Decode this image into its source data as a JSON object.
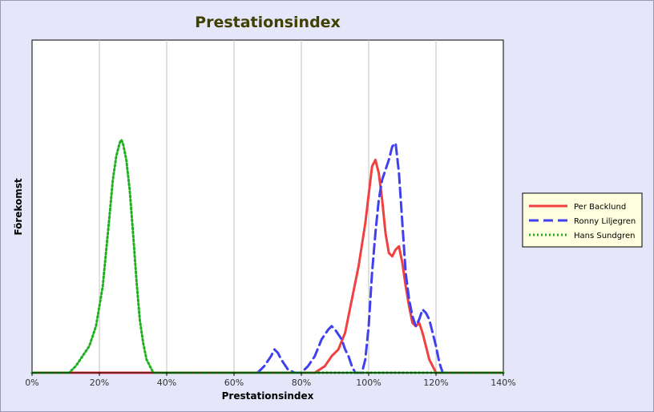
{
  "colors": {
    "background": "#e6e6fa",
    "plot_background": "#ffffff",
    "gridline": "#c0c0c0",
    "title": "#404000",
    "legend_background": "#ffffe0",
    "axis_text": "#333333"
  },
  "chart_data": {
    "type": "line",
    "title": "Prestationsindex",
    "xlabel": "Prestationsindex",
    "ylabel": "Förekomst",
    "xlim": [
      0,
      140
    ],
    "ylim": [
      0,
      100
    ],
    "x_ticks": [
      0,
      20,
      40,
      60,
      80,
      100,
      120,
      140
    ],
    "x_tick_labels": [
      "0%",
      "20%",
      "40%",
      "60%",
      "80%",
      "100%",
      "120%",
      "140%"
    ],
    "vertical_grid": true,
    "horizontal_grid": false,
    "legend_position": "right",
    "series": [
      {
        "name": "Per Backlund",
        "color": "#f04040",
        "dash": "solid",
        "points": [
          [
            0,
            0
          ],
          [
            84,
            0
          ],
          [
            87,
            2
          ],
          [
            89,
            5
          ],
          [
            91,
            7
          ],
          [
            93,
            12
          ],
          [
            95,
            22
          ],
          [
            97,
            32
          ],
          [
            99,
            45
          ],
          [
            101,
            62
          ],
          [
            102,
            64
          ],
          [
            103,
            60
          ],
          [
            104,
            52
          ],
          [
            105,
            42
          ],
          [
            106,
            36
          ],
          [
            107,
            35
          ],
          [
            108,
            37
          ],
          [
            109,
            38
          ],
          [
            110,
            33
          ],
          [
            111,
            26
          ],
          [
            112,
            20
          ],
          [
            113,
            15
          ],
          [
            114,
            14
          ],
          [
            115,
            15
          ],
          [
            116,
            12
          ],
          [
            117,
            8
          ],
          [
            118,
            4
          ],
          [
            119,
            2
          ],
          [
            120,
            0
          ],
          [
            140,
            0
          ]
        ]
      },
      {
        "name": "Ronny Liljegren",
        "color": "#4040ee",
        "dash": "dashed",
        "points": [
          [
            67,
            0
          ],
          [
            69,
            2
          ],
          [
            71,
            5
          ],
          [
            72,
            7
          ],
          [
            73,
            6
          ],
          [
            74,
            4
          ],
          [
            76,
            1
          ],
          [
            78,
            0
          ],
          [
            80,
            0
          ],
          [
            82,
            2
          ],
          [
            84,
            5
          ],
          [
            86,
            10
          ],
          [
            88,
            13
          ],
          [
            89,
            14
          ],
          [
            90,
            13
          ],
          [
            92,
            10
          ],
          [
            93,
            7
          ],
          [
            94,
            5
          ],
          [
            95,
            2
          ],
          [
            96,
            0
          ],
          [
            98,
            0
          ],
          [
            99,
            4
          ],
          [
            100,
            14
          ],
          [
            101,
            30
          ],
          [
            102,
            42
          ],
          [
            103,
            52
          ],
          [
            104,
            58
          ],
          [
            105,
            61
          ],
          [
            106,
            64
          ],
          [
            107,
            68
          ],
          [
            108,
            69
          ],
          [
            109,
            60
          ],
          [
            110,
            45
          ],
          [
            111,
            30
          ],
          [
            112,
            22
          ],
          [
            113,
            17
          ],
          [
            114,
            14
          ],
          [
            115,
            16
          ],
          [
            116,
            19
          ],
          [
            117,
            18
          ],
          [
            118,
            16
          ],
          [
            119,
            12
          ],
          [
            120,
            8
          ],
          [
            121,
            3
          ],
          [
            122,
            0
          ]
        ]
      },
      {
        "name": "Hans Sundgren",
        "color": "#20b020",
        "dash": "dotted",
        "points": [
          [
            0,
            0
          ],
          [
            11,
            0
          ],
          [
            13,
            2
          ],
          [
            15,
            5
          ],
          [
            17,
            8
          ],
          [
            19,
            14
          ],
          [
            21,
            26
          ],
          [
            23,
            47
          ],
          [
            24,
            58
          ],
          [
            25,
            65
          ],
          [
            26,
            69
          ],
          [
            26.5,
            70
          ],
          [
            27,
            69
          ],
          [
            28,
            64
          ],
          [
            29,
            55
          ],
          [
            30,
            42
          ],
          [
            31,
            28
          ],
          [
            32,
            16
          ],
          [
            33,
            9
          ],
          [
            34,
            4
          ],
          [
            35,
            2
          ],
          [
            36,
            0
          ],
          [
            140,
            0
          ]
        ]
      }
    ]
  }
}
